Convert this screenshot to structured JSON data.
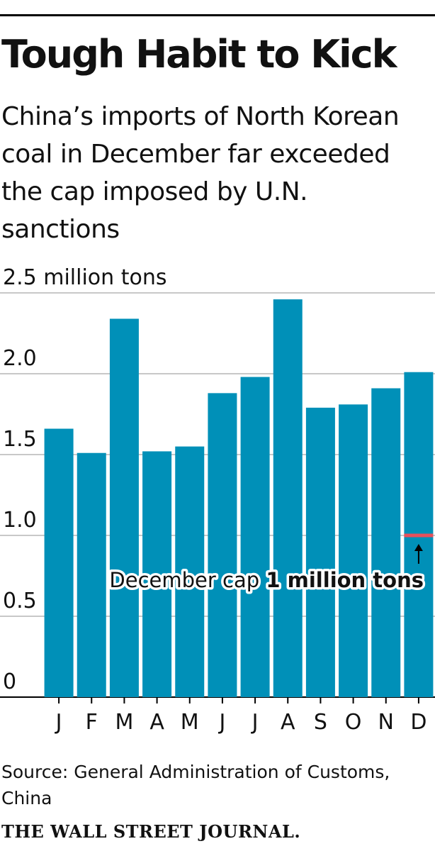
{
  "header": {
    "title": "Tough Habit to Kick",
    "subtitle": "China’s imports of North Korean coal in December far exceeded the cap imposed by U.N. sanctions"
  },
  "chart_data": {
    "type": "bar",
    "categories": [
      "J",
      "F",
      "M",
      "A",
      "M",
      "J",
      "J",
      "A",
      "S",
      "O",
      "N",
      "D"
    ],
    "values": [
      1.66,
      1.51,
      2.34,
      1.52,
      1.55,
      1.88,
      1.98,
      2.46,
      1.79,
      1.81,
      1.91,
      2.01
    ],
    "ylim": [
      0,
      2.5
    ],
    "yticks": [
      {
        "value": 0,
        "label": "0"
      },
      {
        "value": 0.5,
        "label": "0.5"
      },
      {
        "value": 1.0,
        "label": "1.0"
      },
      {
        "value": 1.5,
        "label": "1.5"
      },
      {
        "value": 2.0,
        "label": "2.0"
      },
      {
        "value": 2.5,
        "label": "2.5 million tons"
      }
    ],
    "grid": true,
    "bar_color": "#0090b8",
    "cap": {
      "value": 1.0,
      "category": "D",
      "color": "#e8505b",
      "label_prefix": "December cap ",
      "label_bold": "1 million tons"
    }
  },
  "footer": {
    "source": "Source: General Administration of Customs, China",
    "brand": "THE WALL STREET JOURNAL."
  }
}
